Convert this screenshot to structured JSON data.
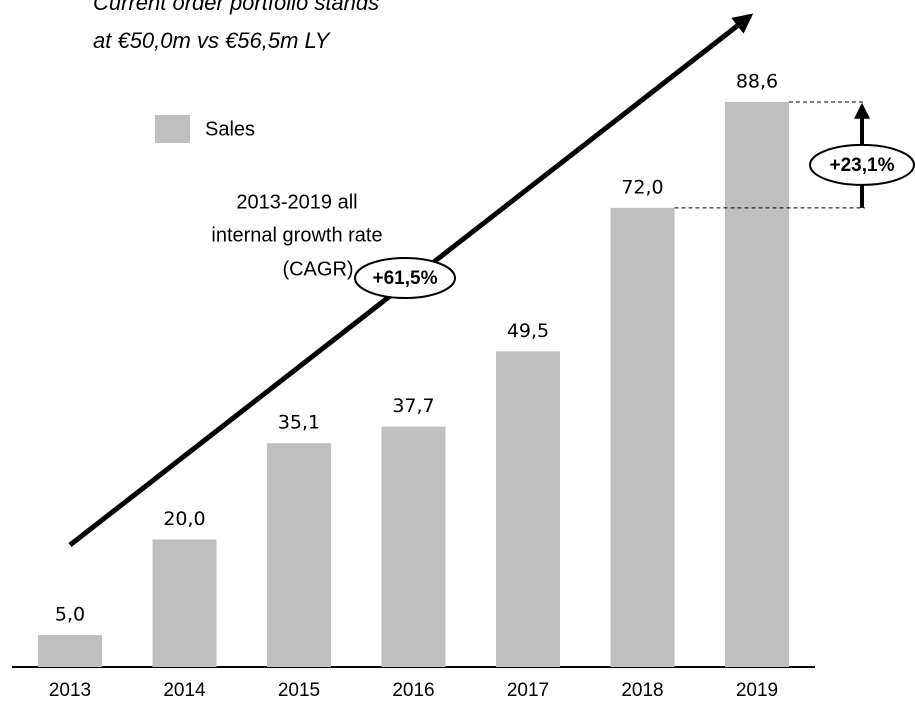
{
  "chart_data": {
    "type": "bar",
    "title": [
      "Current order portfolio stands",
      "at €50,0m vs €56,5m LY"
    ],
    "categories": [
      "2013",
      "2014",
      "2015",
      "2016",
      "2017",
      "2018",
      "2019"
    ],
    "series": [
      {
        "name": "Sales",
        "color": "#bfbfbf",
        "values": [
          5.0,
          20.0,
          35.1,
          37.7,
          49.5,
          72.0,
          88.6
        ],
        "value_labels": [
          "5,0",
          "20,0",
          "35,1",
          "37,7",
          "49,5",
          "72,0",
          "88,6"
        ]
      }
    ],
    "cagr_label": [
      "2013-2019 all",
      "internal growth rate",
      "(CAGR)"
    ],
    "cagr_value": "+61,5%",
    "yoy_growth": "+23,1%"
  }
}
